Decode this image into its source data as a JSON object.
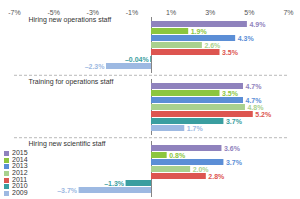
{
  "chart_data": {
    "type": "bar",
    "orientation": "horizontal",
    "categories": [
      "Hiring new operations staff",
      "Training for operations staff",
      "Hiring new scientific staff"
    ],
    "series": [
      {
        "name": "2015",
        "color": "#8f82bd",
        "values": [
          4.9,
          4.7,
          3.6
        ],
        "value_labels": [
          "4.9%",
          "4.7%",
          "3.6%"
        ]
      },
      {
        "name": "2014",
        "color": "#8cc63e",
        "values": [
          1.9,
          3.5,
          0.8
        ],
        "value_labels": [
          "1.9%",
          "3.5%",
          "0.8%"
        ]
      },
      {
        "name": "2013",
        "color": "#5b8ed6",
        "values": [
          4.3,
          4.7,
          3.7
        ],
        "value_labels": [
          "4.3%",
          "4.7%",
          "3.7%"
        ]
      },
      {
        "name": "2012",
        "color": "#a9d18e",
        "values": [
          2.6,
          4.8,
          2.0
        ],
        "value_labels": [
          "2.6%",
          "4.8%",
          "2.0%"
        ]
      },
      {
        "name": "2011",
        "color": "#dd5550",
        "values": [
          3.5,
          5.2,
          2.8
        ],
        "value_labels": [
          "3.5%",
          "5.2%",
          "2.8%"
        ]
      },
      {
        "name": "2010",
        "color": "#3a9ea0",
        "values": [
          -0.04,
          3.7,
          -1.3
        ],
        "value_labels": [
          "–0.04%",
          "3.7%",
          "–1.3%"
        ]
      },
      {
        "name": "2009",
        "color": "#9db9e2",
        "values": [
          -2.3,
          1.7,
          -3.7
        ],
        "value_labels": [
          "–2.3%",
          "1.7%",
          "–3.7%"
        ]
      }
    ],
    "xlim": [
      -7,
      7
    ],
    "xticks": [
      {
        "value": -7,
        "label": "-7%"
      },
      {
        "value": -5,
        "label": "-5%"
      },
      {
        "value": -3,
        "label": "-3%"
      },
      {
        "value": -1,
        "label": "-1%"
      },
      {
        "value": 1,
        "label": "1%"
      },
      {
        "value": 3,
        "label": "3%"
      },
      {
        "value": 5,
        "label": "5%"
      },
      {
        "value": 7,
        "label": "7%"
      }
    ],
    "data_labels": true,
    "legend": "bottom-left",
    "grid": false
  }
}
